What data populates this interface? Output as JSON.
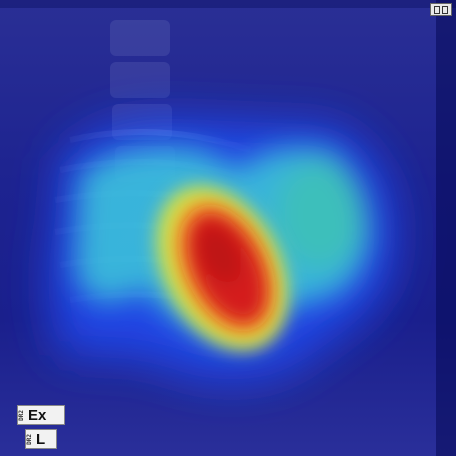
{
  "image": {
    "description_colors": {
      "background": "#1a1f8c",
      "heat_low": "#1e3cff",
      "heat_mid": "#3fd6c8",
      "heat_high": "#f5e03a",
      "heat_peak": "#d01818"
    }
  },
  "markers": {
    "exam_prefix": "DR2",
    "exam_label": "Ex",
    "side_prefix": "DR2",
    "side_label": "L"
  },
  "icons": {
    "corner": "grid-icon"
  }
}
